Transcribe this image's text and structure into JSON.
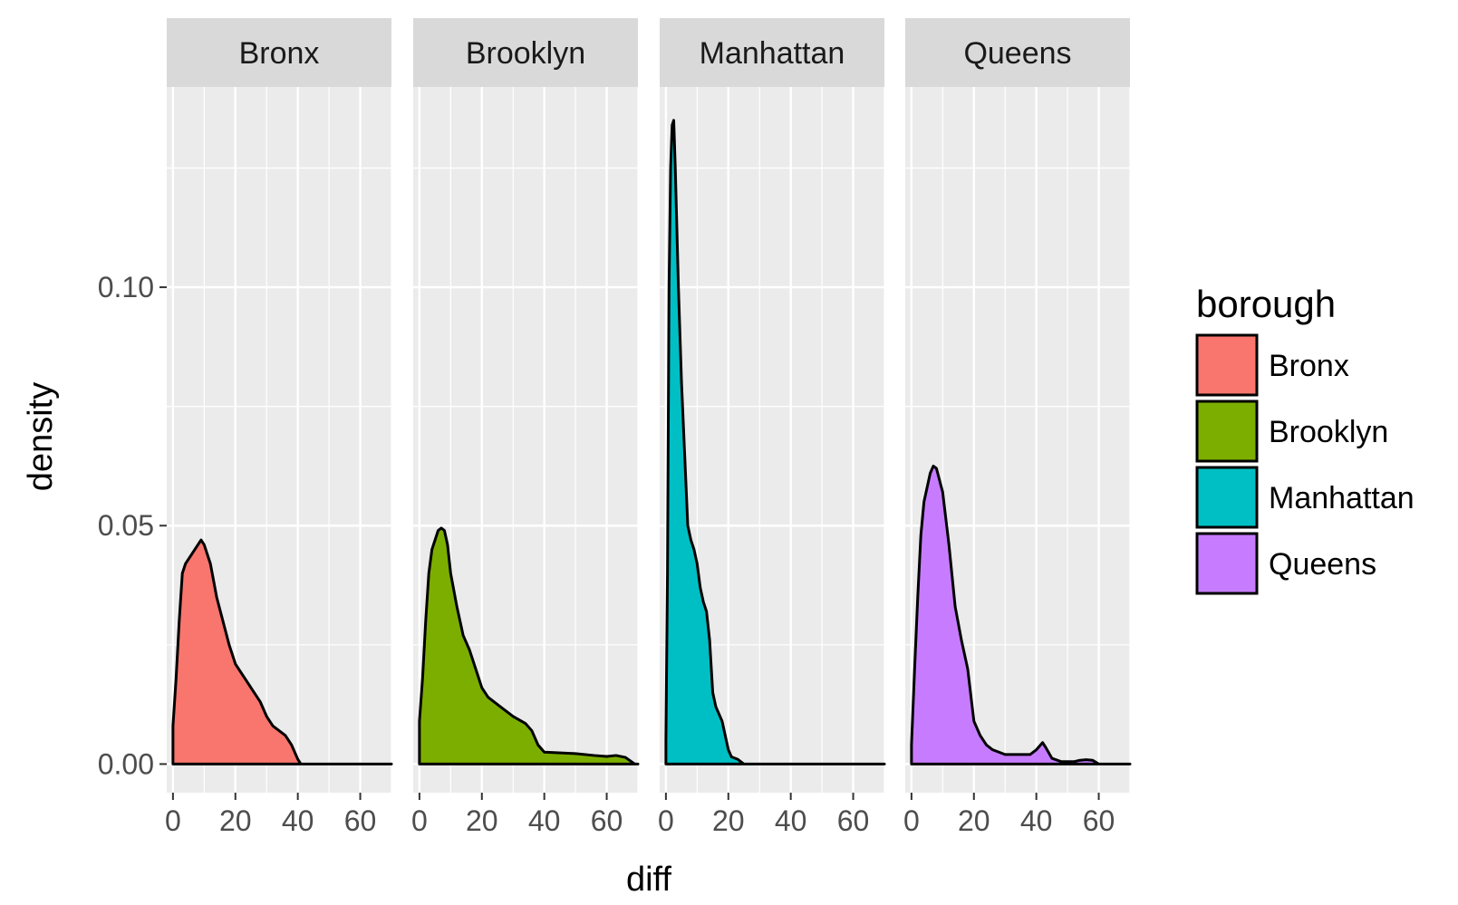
{
  "chart_data": {
    "type": "area",
    "facet_by": "borough",
    "xlabel": "diff",
    "ylabel": "density",
    "xlim": [
      -2,
      70
    ],
    "ylim": [
      -0.006,
      0.142
    ],
    "x_ticks": [
      0,
      20,
      40,
      60
    ],
    "x_tick_labels": [
      "0",
      "20",
      "40",
      "60"
    ],
    "y_ticks": [
      0.0,
      0.05,
      0.1
    ],
    "y_tick_labels": [
      "0.00",
      "0.05",
      "0.10"
    ],
    "grid": true,
    "legend": {
      "title": "borough",
      "position": "right",
      "entries": [
        "Bronx",
        "Brooklyn",
        "Manhattan",
        "Queens"
      ]
    },
    "series": [
      {
        "name": "Bronx",
        "color": "#F8766D",
        "points": [
          [
            0,
            0.0
          ],
          [
            0,
            0.008
          ],
          [
            1,
            0.018
          ],
          [
            2,
            0.03
          ],
          [
            3,
            0.04
          ],
          [
            4,
            0.042
          ],
          [
            6,
            0.044
          ],
          [
            8,
            0.046
          ],
          [
            9,
            0.047
          ],
          [
            10,
            0.046
          ],
          [
            12,
            0.042
          ],
          [
            14,
            0.035
          ],
          [
            16,
            0.03
          ],
          [
            18,
            0.025
          ],
          [
            20,
            0.021
          ],
          [
            22,
            0.019
          ],
          [
            24,
            0.017
          ],
          [
            26,
            0.015
          ],
          [
            28,
            0.013
          ],
          [
            30,
            0.01
          ],
          [
            32,
            0.008
          ],
          [
            34,
            0.007
          ],
          [
            36,
            0.006
          ],
          [
            38,
            0.004
          ],
          [
            40,
            0.001
          ],
          [
            41,
            0.0
          ],
          [
            70,
            0.0
          ]
        ]
      },
      {
        "name": "Brooklyn",
        "color": "#7CAE00",
        "points": [
          [
            0,
            0.0
          ],
          [
            0,
            0.009
          ],
          [
            1,
            0.018
          ],
          [
            2,
            0.03
          ],
          [
            3,
            0.04
          ],
          [
            4,
            0.045
          ],
          [
            6,
            0.049
          ],
          [
            7,
            0.0495
          ],
          [
            8,
            0.049
          ],
          [
            9,
            0.046
          ],
          [
            10,
            0.04
          ],
          [
            12,
            0.033
          ],
          [
            14,
            0.027
          ],
          [
            16,
            0.024
          ],
          [
            18,
            0.02
          ],
          [
            20,
            0.016
          ],
          [
            22,
            0.014
          ],
          [
            26,
            0.012
          ],
          [
            30,
            0.01
          ],
          [
            34,
            0.0085
          ],
          [
            36,
            0.007
          ],
          [
            38,
            0.004
          ],
          [
            40,
            0.0025
          ],
          [
            50,
            0.0022
          ],
          [
            56,
            0.0018
          ],
          [
            60,
            0.0016
          ],
          [
            63,
            0.0018
          ],
          [
            66,
            0.0014
          ],
          [
            69,
            0.0
          ],
          [
            70,
            0.0
          ]
        ]
      },
      {
        "name": "Manhattan",
        "color": "#00BFC4",
        "points": [
          [
            0,
            0.0
          ],
          [
            0,
            0.005
          ],
          [
            0.5,
            0.04
          ],
          [
            1,
            0.1
          ],
          [
            1.5,
            0.125
          ],
          [
            2,
            0.134
          ],
          [
            2.5,
            0.135
          ],
          [
            3,
            0.125
          ],
          [
            4,
            0.1
          ],
          [
            5,
            0.08
          ],
          [
            6,
            0.065
          ],
          [
            7,
            0.05
          ],
          [
            8,
            0.047
          ],
          [
            9,
            0.045
          ],
          [
            10,
            0.042
          ],
          [
            11,
            0.037
          ],
          [
            12,
            0.034
          ],
          [
            13,
            0.032
          ],
          [
            14,
            0.026
          ],
          [
            15,
            0.015
          ],
          [
            16,
            0.012
          ],
          [
            18,
            0.009
          ],
          [
            19,
            0.006
          ],
          [
            20,
            0.003
          ],
          [
            21,
            0.0015
          ],
          [
            23,
            0.001
          ],
          [
            25,
            0.0
          ],
          [
            70,
            0.0
          ]
        ]
      },
      {
        "name": "Queens",
        "color": "#C77CFF",
        "points": [
          [
            0,
            0.0
          ],
          [
            0,
            0.004
          ],
          [
            1,
            0.02
          ],
          [
            2,
            0.035
          ],
          [
            3,
            0.048
          ],
          [
            4,
            0.055
          ],
          [
            6,
            0.061
          ],
          [
            7,
            0.0625
          ],
          [
            8,
            0.062
          ],
          [
            10,
            0.057
          ],
          [
            12,
            0.046
          ],
          [
            14,
            0.033
          ],
          [
            16,
            0.026
          ],
          [
            18,
            0.02
          ],
          [
            20,
            0.009
          ],
          [
            22,
            0.006
          ],
          [
            24,
            0.004
          ],
          [
            26,
            0.003
          ],
          [
            30,
            0.002
          ],
          [
            34,
            0.002
          ],
          [
            38,
            0.002
          ],
          [
            40,
            0.003
          ],
          [
            42,
            0.0045
          ],
          [
            43,
            0.0035
          ],
          [
            45,
            0.0012
          ],
          [
            48,
            0.0005
          ],
          [
            52,
            0.0005
          ],
          [
            54,
            0.0008
          ],
          [
            56,
            0.0009
          ],
          [
            58,
            0.0008
          ],
          [
            60,
            0.0
          ],
          [
            70,
            0.0
          ]
        ]
      }
    ]
  }
}
